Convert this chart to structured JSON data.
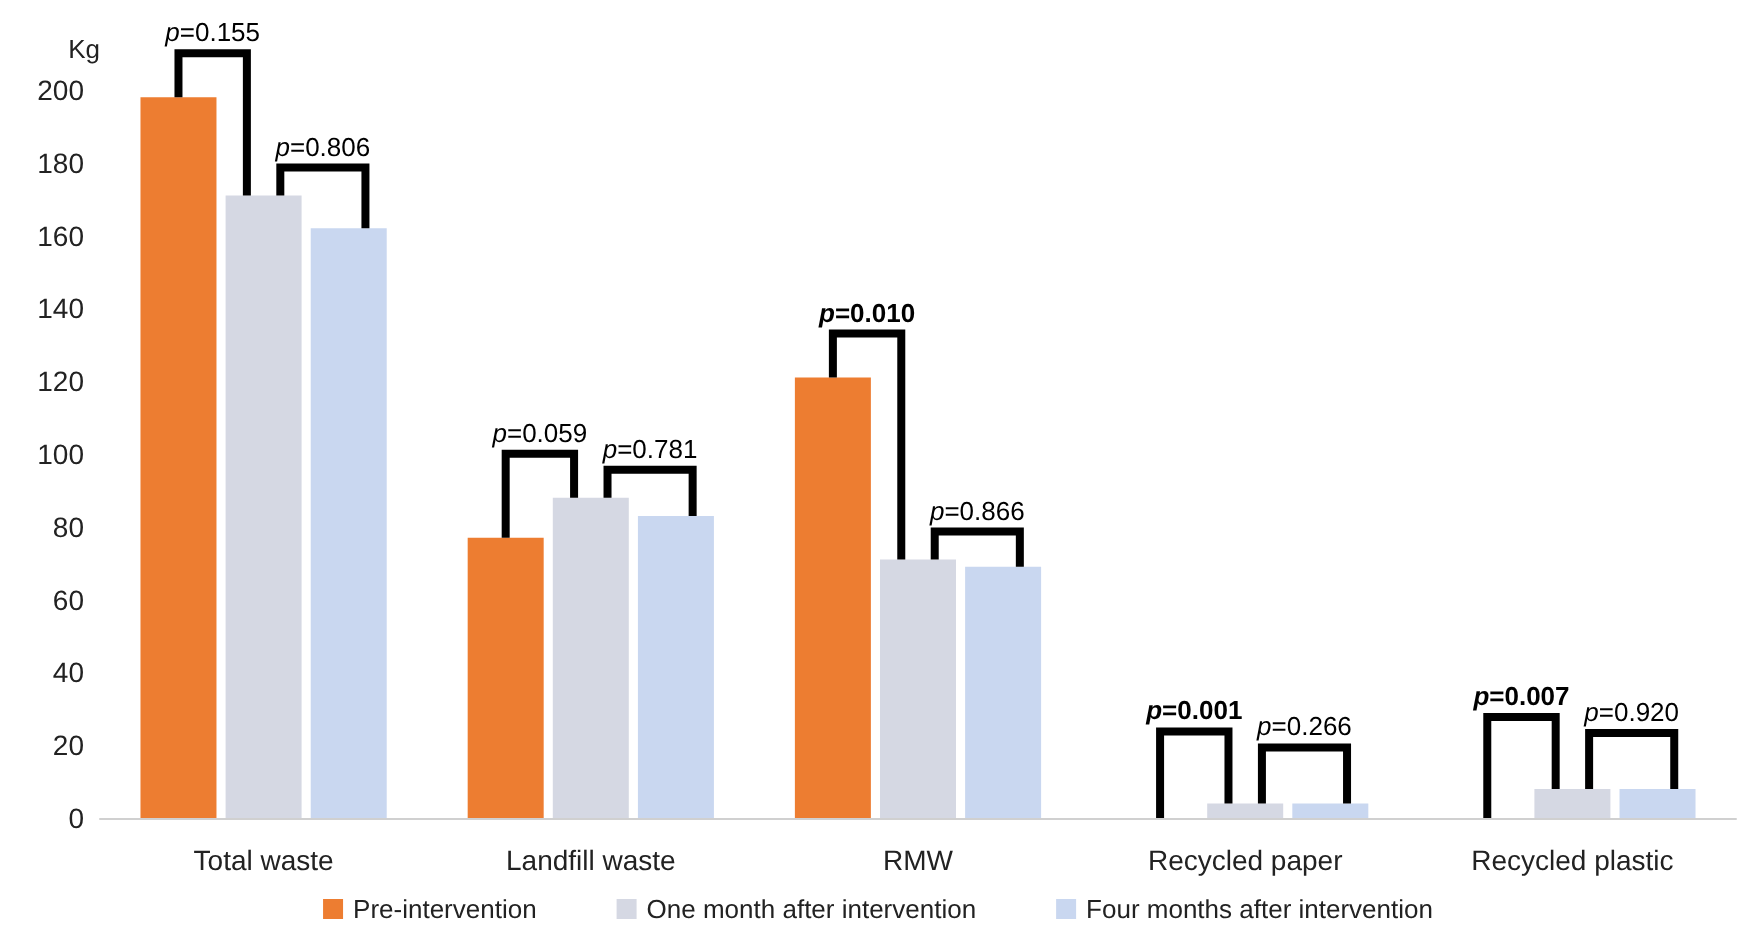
{
  "chart_data": {
    "type": "bar",
    "ylabel": "Kg",
    "categories": [
      "Total waste",
      "Landfill waste",
      "RMW",
      "Recycled paper",
      "Recycled plastic"
    ],
    "series": [
      {
        "name": "Pre-intervention",
        "color": "#ed7d31",
        "values": [
          198,
          77,
          121,
          0,
          0
        ]
      },
      {
        "name": "One month after intervention",
        "color": "#d5d8e3",
        "values": [
          171,
          88,
          71,
          4,
          8
        ]
      },
      {
        "name": "Four months after intervention",
        "color": "#c9d7f0",
        "values": [
          162,
          83,
          69,
          4,
          8
        ]
      }
    ],
    "ylim": [
      0,
      200
    ],
    "yticks": [
      0,
      20,
      40,
      60,
      80,
      100,
      120,
      140,
      160,
      180,
      200
    ],
    "annotations": [
      "p=0.155",
      "p=0.806",
      "p=0.059",
      "p=0.781",
      "p=0.010",
      "p=0.866",
      "p=0.001",
      "p=0.266",
      "p=0.007",
      "p=0.920"
    ],
    "grid": false,
    "legend": "bottom"
  }
}
